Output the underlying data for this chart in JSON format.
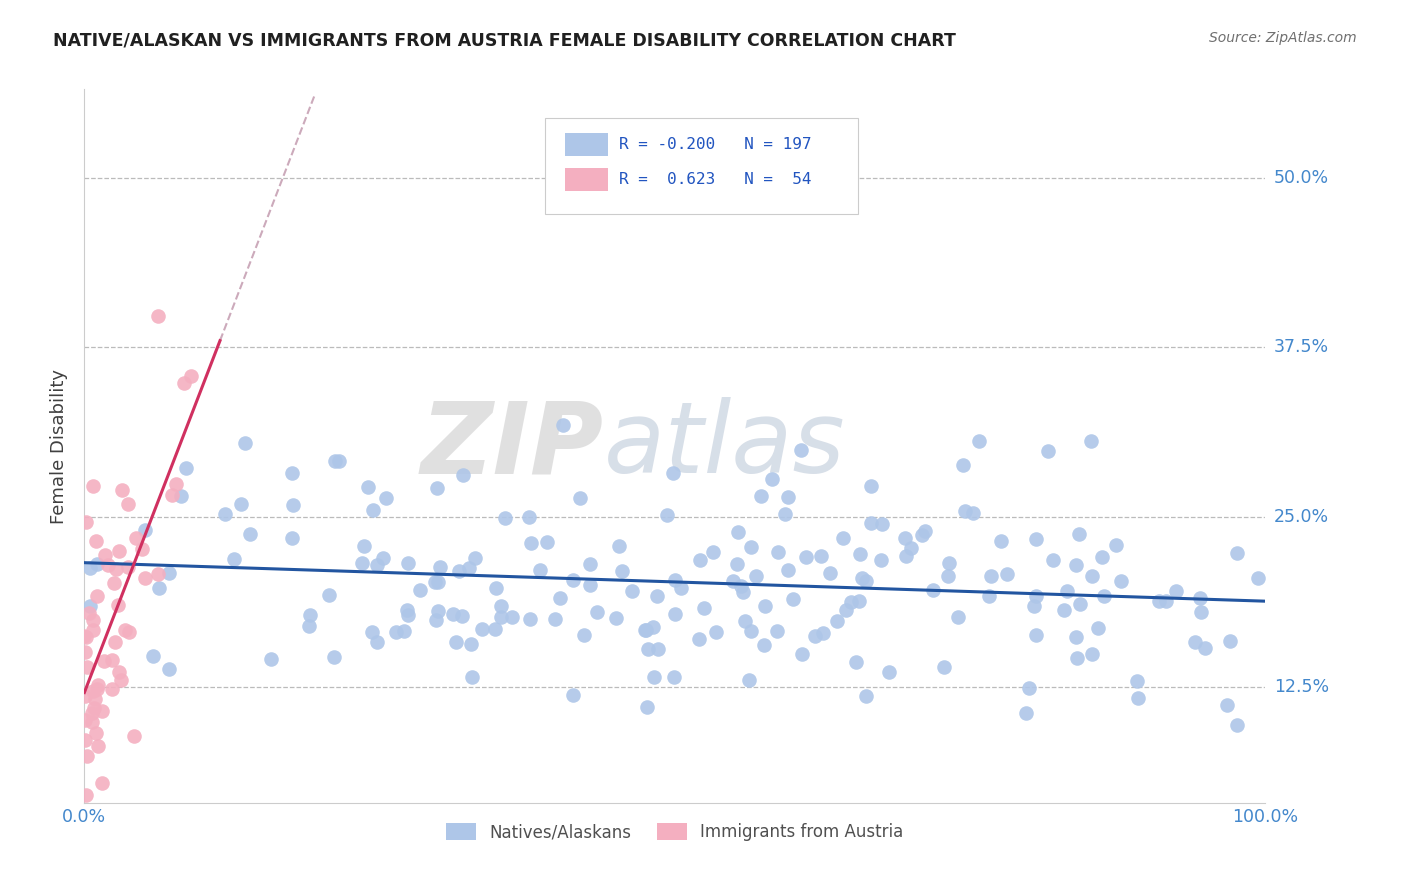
{
  "title": "NATIVE/ALASKAN VS IMMIGRANTS FROM AUSTRIA FEMALE DISABILITY CORRELATION CHART",
  "source": "Source: ZipAtlas.com",
  "ylabel": "Female Disability",
  "xlim": [
    0,
    1
  ],
  "ylim": [
    0.04,
    0.565
  ],
  "yticks": [
    0.125,
    0.25,
    0.375,
    0.5
  ],
  "ytick_labels": [
    "12.5%",
    "25.0%",
    "37.5%",
    "50.0%"
  ],
  "blue_R": -0.2,
  "blue_N": 197,
  "pink_R": 0.623,
  "pink_N": 54,
  "blue_dot_color": "#aec6e8",
  "pink_dot_color": "#f4afc0",
  "blue_line_color": "#2255a0",
  "pink_line_color": "#d03060",
  "pink_dashed_color": "#ccaabb",
  "legend_label_blue": "Natives/Alaskans",
  "legend_label_pink": "Immigrants from Austria",
  "watermark_zip": "ZIP",
  "watermark_atlas": "atlas",
  "background_color": "#ffffff",
  "grid_color": "#bbbbbb",
  "title_color": "#202020",
  "source_color": "#707070",
  "ylabel_color": "#404040",
  "legend_text_color": "#2255c0",
  "tick_label_color": "#4488cc"
}
